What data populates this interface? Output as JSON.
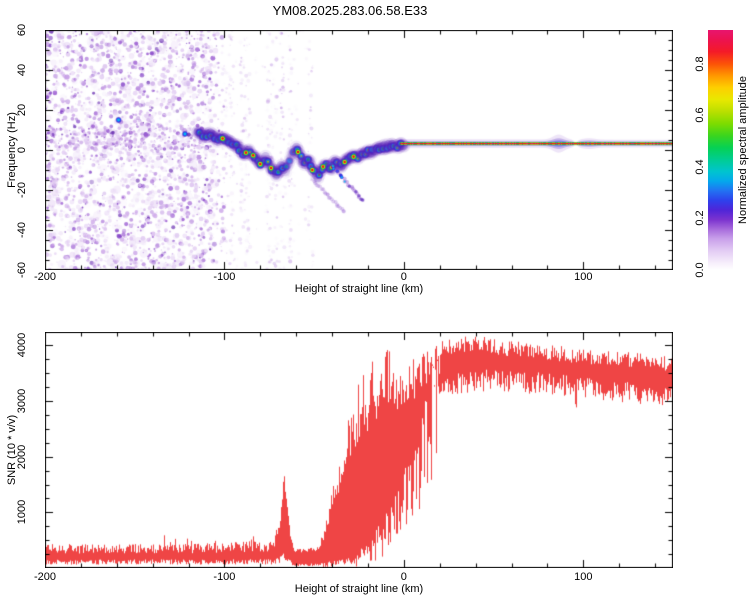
{
  "title": "YM08.2025.283.06.58.E33",
  "palette": {
    "background": "#ffffff",
    "frame": "#000000",
    "halo": "#7a36c8",
    "deep": "#4a1cb8",
    "blue": "#2438f0",
    "cyan": "#00c0f0",
    "green": "#00d148",
    "yellow": "#eef000",
    "orange": "#ff9000",
    "red": "#f21818",
    "magenta": "#ee1060",
    "noise": [
      "#f1e7f9",
      "#e2cdf3",
      "#cfabea",
      "#b687de",
      "#9c5ed2",
      "#8140c6",
      "#6226ae"
    ]
  },
  "chart_data": [
    {
      "type": "heatmap",
      "title": "YM08.2025.283.06.58.E33",
      "xlabel": "Height of straight line (km)",
      "ylabel": "Frequency (Hz)",
      "xlim": [
        -200,
        150
      ],
      "ylim": [
        -60,
        60
      ],
      "xticks": [
        -200,
        -100,
        0,
        100
      ],
      "yticks": [
        60,
        40,
        20,
        0,
        -20,
        -40,
        -60
      ],
      "grid": false,
      "colorbar": {
        "label": "Normalized spectral amplitude",
        "ticks": [
          0.0,
          0.2,
          0.4,
          0.6,
          0.8
        ],
        "range": [
          0,
          0.93
        ],
        "colormap_stops": [
          [
            0.0,
            "#ffffff"
          ],
          [
            0.03,
            "#f6eefb"
          ],
          [
            0.08,
            "#e3ccf4"
          ],
          [
            0.13,
            "#c9a0ea"
          ],
          [
            0.17,
            "#a76bdc"
          ],
          [
            0.21,
            "#7b33cf"
          ],
          [
            0.25,
            "#4f25d8"
          ],
          [
            0.29,
            "#2e41ec"
          ],
          [
            0.33,
            "#2272f2"
          ],
          [
            0.37,
            "#04a8ec"
          ],
          [
            0.41,
            "#00c4cf"
          ],
          [
            0.46,
            "#00cd92"
          ],
          [
            0.51,
            "#06d153"
          ],
          [
            0.56,
            "#3bd51e"
          ],
          [
            0.61,
            "#7edc00"
          ],
          [
            0.66,
            "#badf00"
          ],
          [
            0.71,
            "#e8e800"
          ],
          [
            0.76,
            "#fecf00"
          ],
          [
            0.81,
            "#ff9700"
          ],
          [
            0.86,
            "#fc5108"
          ],
          [
            0.91,
            "#f41a28"
          ],
          [
            0.96,
            "#ec1250"
          ],
          [
            1.0,
            "#e8156e"
          ]
        ]
      },
      "noise_region_km": [
        -200,
        -100
      ],
      "noise_band_hz": [
        1,
        11
      ],
      "streak_columns_km": [
        -100,
        -96,
        -90,
        -87,
        -75,
        -72,
        -68,
        -63,
        -52
      ],
      "trace_path": [
        [
          -115,
          9
        ],
        [
          -111,
          7
        ],
        [
          -108,
          8
        ],
        [
          -104,
          5
        ],
        [
          -100,
          6
        ],
        [
          -96,
          3
        ],
        [
          -92,
          1
        ],
        [
          -89,
          -2
        ],
        [
          -86,
          0
        ],
        [
          -83,
          -4
        ],
        [
          -80,
          -7
        ],
        [
          -77,
          -4
        ],
        [
          -74,
          -9
        ],
        [
          -71,
          -12
        ],
        [
          -68,
          -8
        ],
        [
          -66,
          -10
        ],
        [
          -63,
          -4
        ],
        [
          -60,
          1
        ],
        [
          -58,
          -3
        ],
        [
          -56,
          -7
        ],
        [
          -53,
          -5
        ],
        [
          -51,
          -10
        ],
        [
          -48,
          -13
        ],
        [
          -46,
          -9
        ],
        [
          -43,
          -7
        ],
        [
          -41,
          -10
        ],
        [
          -38,
          -6
        ],
        [
          -35,
          -8
        ],
        [
          -32,
          -5
        ],
        [
          -29,
          -3
        ],
        [
          -26,
          -4
        ],
        [
          -23,
          -2
        ],
        [
          -20,
          -1
        ],
        [
          -16,
          0
        ],
        [
          -12,
          1
        ],
        [
          -8,
          2
        ],
        [
          -4,
          2
        ],
        [
          0,
          3
        ]
      ],
      "hot_spots_km": [
        -101,
        -88,
        -84,
        -80,
        -74,
        -59,
        -51,
        -45,
        -40,
        -33,
        -28
      ],
      "line": {
        "hz": 3.2,
        "from_km": -2,
        "to_km": 150,
        "bump_km": 86,
        "pinch_km": 95.6
      },
      "diagonal_streaks": [
        [
          [
            -42,
            -6
          ],
          [
            -23,
            -25
          ]
        ],
        [
          [
            -50,
            -16
          ],
          [
            -33,
            -31
          ]
        ]
      ],
      "isolated_blobs": [
        [
          -159,
          15
        ],
        [
          -122,
          8
        ]
      ]
    },
    {
      "type": "line",
      "xlabel": "Height of straight line (km)",
      "ylabel": "SNR (10 * v/v)",
      "xlim": [
        -200,
        150
      ],
      "ylim": [
        0,
        4240
      ],
      "xticks": [
        -200,
        -100,
        0,
        100
      ],
      "yticks": [
        4000,
        3000,
        2000,
        1000
      ],
      "grid": false,
      "series": [
        {
          "name": "SNR",
          "color": "#ee3b3b",
          "envelope_format": [
            "km",
            "min",
            "max"
          ],
          "envelope": [
            [
              -200,
              110,
              430
            ],
            [
              -120,
              110,
              430
            ],
            [
              -73,
              115,
              500
            ],
            [
              -69,
              150,
              900
            ],
            [
              -67,
              200,
              1780
            ],
            [
              -65,
              150,
              1050
            ],
            [
              -63,
              100,
              520
            ],
            [
              -61,
              50,
              340
            ],
            [
              -48,
              60,
              380
            ],
            [
              -44,
              80,
              700
            ],
            [
              -38,
              100,
              1500
            ],
            [
              -32,
              120,
              2200
            ],
            [
              -27,
              150,
              2750
            ],
            [
              -20,
              400,
              3100
            ],
            [
              -13,
              600,
              3300
            ],
            [
              -7,
              800,
              3350
            ],
            [
              -2,
              1200,
              3600
            ],
            [
              4,
              1500,
              3750
            ],
            [
              10,
              2000,
              3900
            ],
            [
              16,
              2800,
              4050
            ],
            [
              22,
              3300,
              4120
            ],
            [
              40,
              3450,
              4180
            ],
            [
              55,
              3420,
              4100
            ],
            [
              80,
              3380,
              4020
            ],
            [
              94.8,
              3320,
              3960
            ],
            [
              95.5,
              2880,
              3950
            ],
            [
              96.3,
              3320,
              3950
            ],
            [
              125,
              3220,
              3880
            ],
            [
              150,
              3130,
              3800
            ]
          ]
        }
      ]
    }
  ]
}
